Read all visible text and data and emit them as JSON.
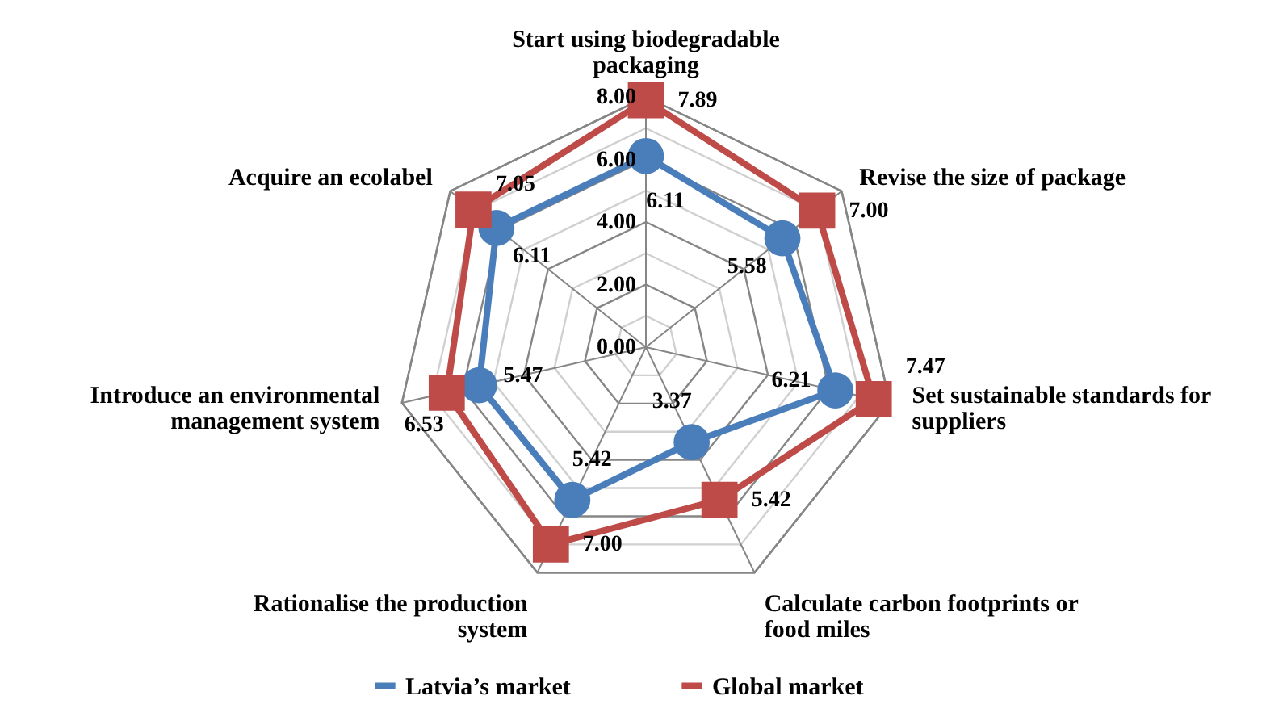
{
  "chart_data": {
    "type": "radar",
    "categories": [
      "Start using biodegradable packaging",
      "Revise the size of package",
      "Set sustainable standards for suppliers",
      "Calculate carbon footprints or food miles",
      "Rationalise the production system",
      "Introduce an environmental management system",
      "Acquire an ecolabel"
    ],
    "series": [
      {
        "name": "Latvia’s market",
        "color": "#4a7ebb",
        "marker": "circle",
        "values": [
          6.11,
          5.58,
          6.21,
          3.37,
          5.42,
          5.47,
          6.11
        ],
        "value_labels": [
          "6.11",
          "5.58",
          "6.21",
          "3.37",
          "5.42",
          "5.47",
          "6.11"
        ]
      },
      {
        "name": "Global market",
        "color": "#be4b48",
        "marker": "square",
        "values": [
          7.89,
          7.0,
          7.47,
          5.42,
          7.0,
          6.53,
          7.05
        ],
        "value_labels": [
          "7.89",
          "7.00",
          "7.47",
          "5.42",
          "7.00",
          "6.53",
          "7.05"
        ]
      }
    ],
    "ylim": [
      0,
      8
    ],
    "yticks": [
      {
        "value": 0,
        "label": "0.00"
      },
      {
        "value": 2,
        "label": "2.00"
      },
      {
        "value": 4,
        "label": "4.00"
      },
      {
        "value": 6,
        "label": "6.00"
      },
      {
        "value": 8,
        "label": "8.00"
      }
    ],
    "legend": "bottom"
  }
}
